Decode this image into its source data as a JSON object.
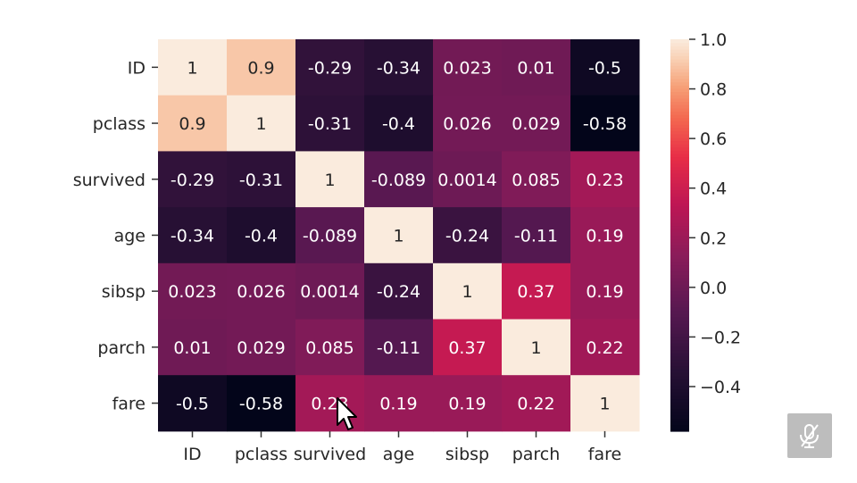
{
  "chart_data": {
    "type": "heatmap",
    "title": "",
    "xlabel": "",
    "ylabel": "",
    "x_labels": [
      "ID",
      "pclass",
      "survived",
      "age",
      "sibsp",
      "parch",
      "fare"
    ],
    "y_labels": [
      "ID",
      "pclass",
      "survived",
      "age",
      "sibsp",
      "parch",
      "fare"
    ],
    "values": [
      [
        1,
        0.9,
        -0.29,
        -0.34,
        0.023,
        0.01,
        -0.5
      ],
      [
        0.9,
        1,
        -0.31,
        -0.4,
        0.026,
        0.029,
        -0.58
      ],
      [
        -0.29,
        -0.31,
        1,
        -0.089,
        0.0014,
        0.085,
        0.23
      ],
      [
        -0.34,
        -0.4,
        -0.089,
        1,
        -0.24,
        -0.11,
        0.19
      ],
      [
        0.023,
        0.026,
        0.0014,
        -0.24,
        1,
        0.37,
        0.19
      ],
      [
        0.01,
        0.029,
        0.085,
        -0.11,
        0.37,
        1,
        0.22
      ],
      [
        -0.5,
        -0.58,
        0.23,
        0.19,
        0.19,
        0.22,
        1
      ]
    ],
    "annotations": [
      [
        "1",
        "0.9",
        "-0.29",
        "-0.34",
        "0.023",
        "0.01",
        "-0.5"
      ],
      [
        "0.9",
        "1",
        "-0.31",
        "-0.4",
        "0.026",
        "0.029",
        "-0.58"
      ],
      [
        "-0.29",
        "-0.31",
        "1",
        "-0.089",
        "0.0014",
        "0.085",
        "0.23"
      ],
      [
        "-0.34",
        "-0.4",
        "-0.089",
        "1",
        "-0.24",
        "-0.11",
        "0.19"
      ],
      [
        "0.023",
        "0.026",
        "0.0014",
        "-0.24",
        "1",
        "0.37",
        "0.19"
      ],
      [
        "0.01",
        "0.029",
        "0.085",
        "-0.11",
        "0.37",
        "1",
        "0.22"
      ],
      [
        "-0.5",
        "-0.58",
        "0.23",
        "0.19",
        "0.19",
        "0.22",
        "1"
      ]
    ],
    "colorbar": {
      "range": [
        -0.58,
        1.0
      ],
      "ticks": [
        1.0,
        0.8,
        0.6,
        0.4,
        0.2,
        0.0,
        -0.2,
        -0.4
      ],
      "tick_labels": [
        "1.0",
        "0.8",
        "0.6",
        "0.4",
        "0.2",
        "0.0",
        "−0.2",
        "−0.4"
      ],
      "colormap": "rocket"
    }
  },
  "overlay": {
    "mic_icon": "mic-off-icon",
    "cursor_icon": "arrow-cursor-icon"
  }
}
